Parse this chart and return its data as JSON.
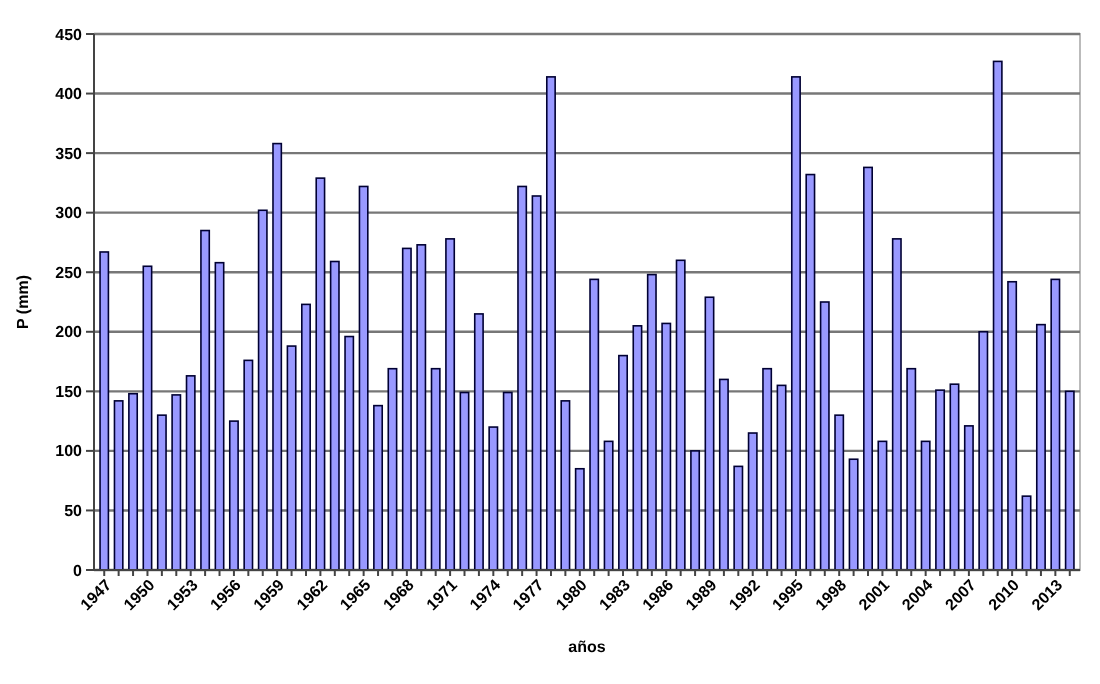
{
  "chart_data": {
    "type": "bar",
    "xlabel": "años",
    "ylabel": "P (mm)",
    "categories": [
      "1947",
      null,
      null,
      "1950",
      null,
      null,
      "1953",
      null,
      null,
      "1956",
      null,
      null,
      "1959",
      null,
      null,
      "1962",
      null,
      null,
      "1965",
      null,
      null,
      "1968",
      null,
      null,
      "1971",
      null,
      null,
      "1974",
      null,
      null,
      "1977",
      null,
      null,
      "1980",
      null,
      null,
      "1983",
      null,
      null,
      "1986",
      null,
      null,
      "1989",
      null,
      null,
      "1992",
      null,
      null,
      "1995",
      null,
      null,
      "1998",
      null,
      null,
      "2001",
      null,
      null,
      "2004",
      null,
      null,
      "2007",
      null,
      null,
      "2010",
      null,
      null,
      "2013",
      null
    ],
    "values": [
      267,
      142,
      148,
      255,
      130,
      147,
      163,
      285,
      258,
      125,
      176,
      302,
      358,
      188,
      223,
      329,
      259,
      196,
      322,
      138,
      169,
      270,
      273,
      169,
      278,
      149,
      215,
      120,
      149,
      322,
      314,
      414,
      142,
      85,
      244,
      108,
      180,
      205,
      248,
      207,
      260,
      100,
      229,
      160,
      87,
      115,
      169,
      155,
      414,
      332,
      225,
      130,
      93,
      338,
      108,
      278,
      169,
      108,
      151,
      156,
      121,
      200,
      427,
      242,
      62,
      206,
      244,
      150
    ],
    "color": "#9999ff",
    "ylim": [
      0,
      450
    ],
    "yticks": [
      0,
      50,
      100,
      150,
      200,
      250,
      300,
      350,
      400,
      450
    ],
    "grid": "y"
  }
}
